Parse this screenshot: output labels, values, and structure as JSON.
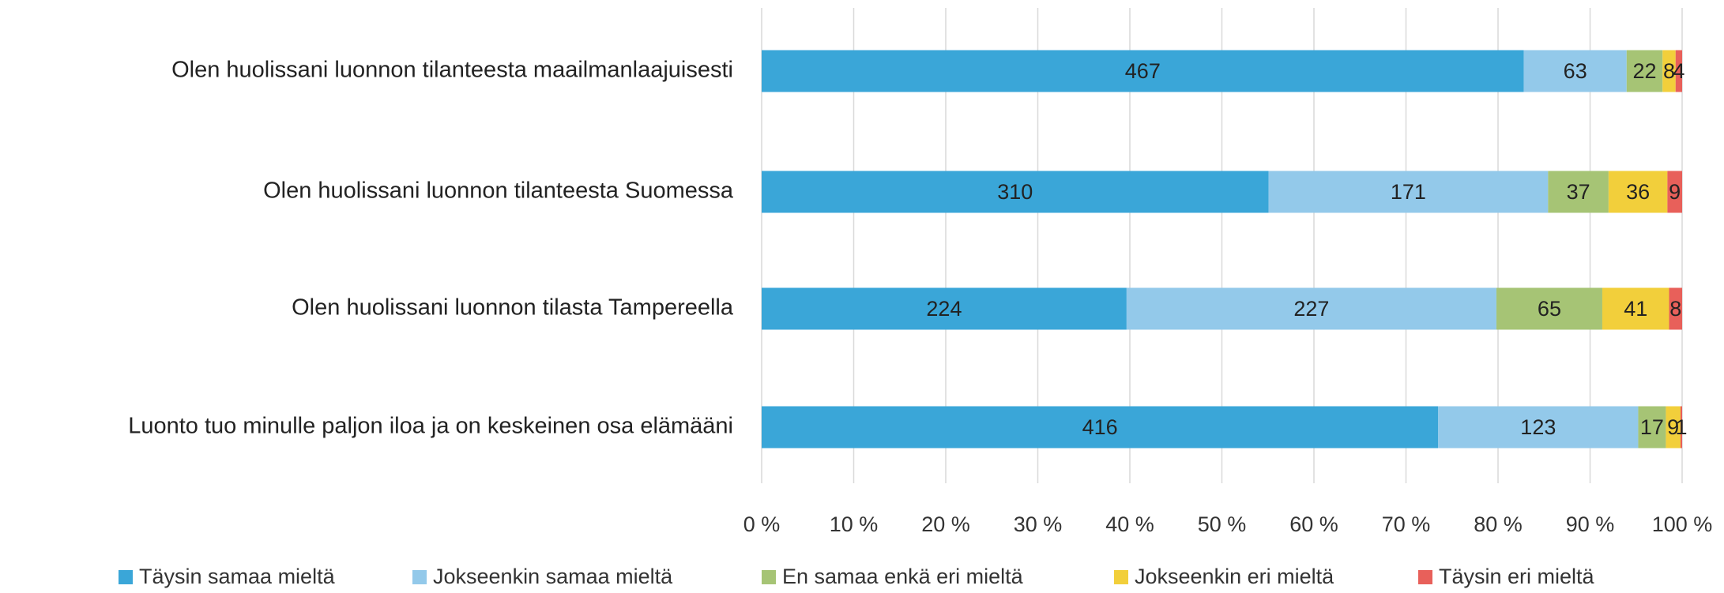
{
  "chart_data": {
    "type": "bar",
    "orientation": "horizontal",
    "stacked": "percent",
    "categories": [
      "Olen huolissani luonnon tilanteesta maailmanlaajuisesti",
      "Olen huolissani luonnon tilanteesta Suomessa",
      "Olen huolissani luonnon tilasta Tampereella",
      "Luonto tuo minulle paljon iloa ja on keskeinen osa elämääni"
    ],
    "series": [
      {
        "name": "Täysin samaa mieltä",
        "color": "#3aa6d8",
        "values": [
          467,
          310,
          224,
          416
        ]
      },
      {
        "name": "Jokseenkin samaa mieltä",
        "color": "#93c9ea",
        "values": [
          63,
          171,
          227,
          123
        ]
      },
      {
        "name": "En samaa enkä eri mieltä",
        "color": "#a6c475",
        "values": [
          22,
          37,
          65,
          17
        ]
      },
      {
        "name": "Jokseenkin eri mieltä",
        "color": "#f2cf3b",
        "values": [
          8,
          36,
          41,
          9
        ]
      },
      {
        "name": "Täysin eri mieltä",
        "color": "#e8605a",
        "values": [
          4,
          9,
          8,
          1
        ]
      }
    ],
    "xlim": [
      0,
      100
    ],
    "xticks": [
      {
        "value": 0,
        "label": "0 %"
      },
      {
        "value": 10,
        "label": "10 %"
      },
      {
        "value": 20,
        "label": "20 %"
      },
      {
        "value": 30,
        "label": "30 %"
      },
      {
        "value": 40,
        "label": "40 %"
      },
      {
        "value": 50,
        "label": "50 %"
      },
      {
        "value": 60,
        "label": "60 %"
      },
      {
        "value": 70,
        "label": "70 %"
      },
      {
        "value": 80,
        "label": "80 %"
      },
      {
        "value": 90,
        "label": "90 %"
      },
      {
        "value": 100,
        "label": "100 %"
      }
    ],
    "grid": true,
    "legend": "bottom"
  }
}
